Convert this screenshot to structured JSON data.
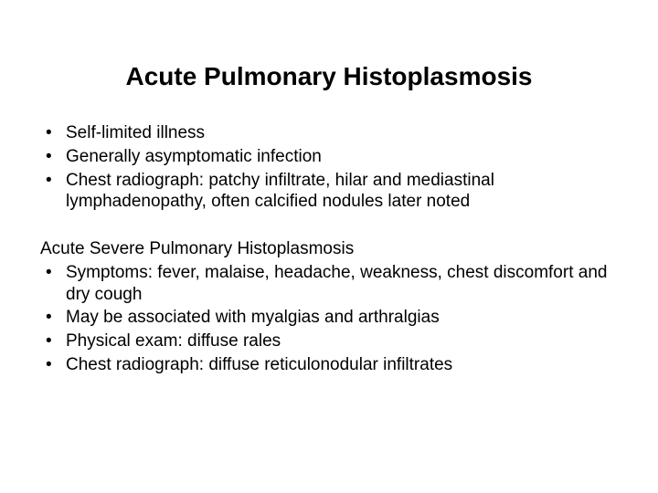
{
  "background_color": "#ffffff",
  "text_color": "#000000",
  "title": {
    "text": "Acute Pulmonary Histoplasmosis",
    "fontsize": 28,
    "weight": "bold"
  },
  "section1": {
    "bullets": [
      "Self-limited illness",
      "Generally asymptomatic infection",
      "Chest radiograph:  patchy infiltrate, hilar and mediastinal lymphadenopathy, often calcified nodules later noted"
    ]
  },
  "section2": {
    "heading": "Acute Severe Pulmonary Histoplasmosis",
    "bullets": [
      "Symptoms:  fever, malaise, headache, weakness, chest discomfort and dry cough",
      "May be associated with myalgias and arthralgias",
      "Physical exam:  diffuse rales",
      "Chest radiograph:  diffuse reticulonodular infiltrates"
    ]
  },
  "bullet_marker": "•",
  "body_fontsize": 19
}
